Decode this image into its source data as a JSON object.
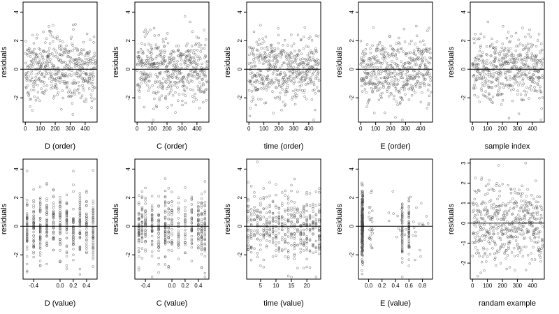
{
  "chart_data": [
    {
      "type": "scatter",
      "xlabel": "D (order)",
      "ylabel": "residuals",
      "xlim": [
        -15,
        480
      ],
      "ylim": [
        -3.7,
        4.7
      ],
      "xticks": [
        0,
        100,
        200,
        300,
        400
      ],
      "xticklabels": [
        "0",
        "100",
        "200",
        "300",
        "400"
      ],
      "yticks": [
        -2,
        0,
        2,
        4
      ],
      "yticklabels": [
        "-2",
        "0",
        "2",
        "4"
      ],
      "hline": 0,
      "n_points": 470,
      "x_mode": "index"
    },
    {
      "type": "scatter",
      "xlabel": "C (order)",
      "ylabel": "residuals",
      "xlim": [
        -15,
        480
      ],
      "ylim": [
        -3.7,
        4.7
      ],
      "xticks": [
        0,
        100,
        200,
        300,
        400
      ],
      "xticklabels": [
        "0",
        "100",
        "200",
        "300",
        "400"
      ],
      "yticks": [
        -2,
        0,
        2,
        4
      ],
      "yticklabels": [
        "-2",
        "0",
        "2",
        "4"
      ],
      "hline": 0,
      "n_points": 470,
      "x_mode": "index"
    },
    {
      "type": "scatter",
      "xlabel": "time (order)",
      "ylabel": "residuals",
      "xlim": [
        -15,
        480
      ],
      "ylim": [
        -3.7,
        4.7
      ],
      "xticks": [
        0,
        100,
        200,
        300,
        400
      ],
      "xticklabels": [
        "0",
        "100",
        "200",
        "300",
        "400"
      ],
      "yticks": [
        -2,
        0,
        2,
        4
      ],
      "yticklabels": [
        "-2",
        "0",
        "2",
        "4"
      ],
      "hline": 0,
      "n_points": 470,
      "x_mode": "index"
    },
    {
      "type": "scatter",
      "xlabel": "E (order)",
      "ylabel": "residuals",
      "xlim": [
        -15,
        480
      ],
      "ylim": [
        -3.7,
        4.7
      ],
      "xticks": [
        0,
        100,
        200,
        300,
        400
      ],
      "xticklabels": [
        "0",
        "100",
        "200",
        "300",
        "400"
      ],
      "yticks": [
        -2,
        0,
        2,
        4
      ],
      "yticklabels": [
        "-2",
        "0",
        "2",
        "4"
      ],
      "hline": 0,
      "n_points": 470,
      "x_mode": "index"
    },
    {
      "type": "scatter",
      "xlabel": "sample index",
      "ylabel": "residuals",
      "xlim": [
        -15,
        480
      ],
      "ylim": [
        -3.7,
        4.7
      ],
      "xticks": [
        0,
        100,
        200,
        300,
        400
      ],
      "xticklabels": [
        "0",
        "100",
        "200",
        "300",
        "400"
      ],
      "yticks": [
        -2,
        0,
        2,
        4
      ],
      "yticklabels": [
        "-2",
        "0",
        "2",
        "4"
      ],
      "hline": 0,
      "n_points": 470,
      "x_mode": "index"
    },
    {
      "type": "scatter",
      "xlabel": "D (value)",
      "ylabel": "residuals",
      "xlim": [
        -0.56,
        0.56
      ],
      "ylim": [
        -3.7,
        4.7
      ],
      "xticks": [
        -0.4,
        0.0,
        0.2,
        0.4
      ],
      "xticklabels": [
        "-0.4",
        "0.0",
        "0.2",
        "0.4"
      ],
      "yticks": [
        -2,
        0,
        2,
        4
      ],
      "yticklabels": [
        "-2",
        "0",
        "2",
        "4"
      ],
      "hline": 0,
      "n_points": 470,
      "x_mode": "levels",
      "x_levels": [
        -0.5,
        -0.4,
        -0.3,
        -0.2,
        -0.1,
        0.0,
        0.1,
        0.2,
        0.3,
        0.4,
        0.5
      ]
    },
    {
      "type": "scatter",
      "xlabel": "C (value)",
      "ylabel": "residuals",
      "xlim": [
        -0.56,
        0.56
      ],
      "ylim": [
        -3.7,
        4.7
      ],
      "xticks": [
        -0.4,
        0.0,
        0.2,
        0.4
      ],
      "xticklabels": [
        "-0.4",
        "0.0",
        "0.2",
        "0.4"
      ],
      "yticks": [
        -2,
        0,
        2,
        4
      ],
      "yticklabels": [
        "-2",
        "0",
        "2",
        "4"
      ],
      "hline": 0,
      "n_points": 470,
      "x_mode": "levels",
      "x_levels": [
        -0.5,
        -0.45,
        -0.4,
        -0.3,
        -0.2,
        -0.1,
        -0.05,
        0.0,
        0.1,
        0.2,
        0.3,
        0.4,
        0.45,
        0.5
      ]
    },
    {
      "type": "scatter",
      "xlabel": "time (value)",
      "ylabel": "residuals",
      "xlim": [
        0.5,
        24.5
      ],
      "ylim": [
        -3.7,
        4.7
      ],
      "xticks": [
        5,
        10,
        15,
        20
      ],
      "xticklabels": [
        "5",
        "10",
        "15",
        "20"
      ],
      "yticks": [
        -2,
        0,
        2,
        4
      ],
      "yticklabels": [
        "-2",
        "0",
        "2",
        "4"
      ],
      "hline": 0,
      "n_points": 470,
      "x_mode": "levels",
      "x_levels": [
        1,
        2,
        3,
        4,
        5,
        6,
        7,
        8,
        9,
        10,
        11,
        12,
        13,
        14,
        15,
        16,
        17,
        18,
        19,
        20,
        21,
        22,
        23,
        24
      ]
    },
    {
      "type": "scatter",
      "xlabel": "E (value)",
      "ylabel": "residuals",
      "xlim": [
        -0.15,
        0.95
      ],
      "ylim": [
        -3.7,
        4.7
      ],
      "xticks": [
        0.0,
        0.2,
        0.4,
        0.6,
        0.8
      ],
      "xticklabels": [
        "0.0",
        "0.2",
        "0.4",
        "0.6",
        "0.8"
      ],
      "yticks": [
        -2,
        0,
        2,
        4
      ],
      "yticklabels": [
        "-2",
        "0",
        "2",
        "4"
      ],
      "hline": 0,
      "n_points": 470,
      "x_mode": "clustered"
    },
    {
      "type": "scatter",
      "xlabel": "randam example",
      "ylabel": "residuals",
      "xlim": [
        -15,
        480
      ],
      "ylim": [
        -2.8,
        3.2
      ],
      "xticks": [
        0,
        100,
        200,
        300,
        400
      ],
      "xticklabels": [
        "0",
        "100",
        "200",
        "300",
        "400"
      ],
      "yticks": [
        -2,
        -1,
        0,
        1,
        2,
        3
      ],
      "yticklabels": [
        "-2",
        "-1",
        "0",
        "1",
        "2",
        "3"
      ],
      "hline": 0,
      "n_points": 470,
      "x_mode": "index"
    }
  ]
}
